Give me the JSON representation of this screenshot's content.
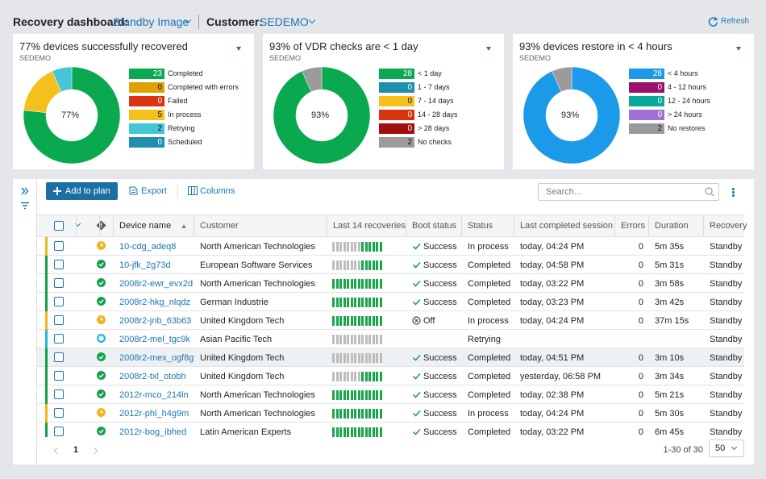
{
  "header": {
    "label": "Recovery dashboard:",
    "view": "Standby Image",
    "customer_label": "Customer:",
    "customer": "SEDEMO",
    "refresh": "Refresh"
  },
  "cards": [
    {
      "title": "77% devices successfully recovered",
      "subtitle": "SEDEMO",
      "center": "77%",
      "items": [
        {
          "label": "Completed",
          "value": 23,
          "color": "#0aa84f"
        },
        {
          "label": "Completed with errors",
          "value": 0,
          "color": "#e0a100"
        },
        {
          "label": "Failed",
          "value": 0,
          "color": "#d9330f"
        },
        {
          "label": "In process",
          "value": 5,
          "color": "#f3c01c"
        },
        {
          "label": "Retrying",
          "value": 2,
          "color": "#45c6d6"
        },
        {
          "label": "Scheduled",
          "value": 0,
          "color": "#1f8fae"
        }
      ]
    },
    {
      "title": "93% of VDR checks are < 1 day",
      "subtitle": "SEDEMO",
      "center": "93%",
      "items": [
        {
          "label": "< 1 day",
          "value": 28,
          "color": "#0aa84f"
        },
        {
          "label": "1 - 7 days",
          "value": 0,
          "color": "#1f8fae"
        },
        {
          "label": "7 - 14 days",
          "value": 0,
          "color": "#f3c01c"
        },
        {
          "label": "14 - 28 days",
          "value": 0,
          "color": "#d9330f"
        },
        {
          "label": "> 28 days",
          "value": 0,
          "color": "#a00e0e"
        },
        {
          "label": "No checks",
          "value": 2,
          "color": "#9b9b9b"
        }
      ]
    },
    {
      "title": "93% devices restore in < 4 hours",
      "subtitle": "SEDEMO",
      "center": "93%",
      "items": [
        {
          "label": "< 4 hours",
          "value": 28,
          "color": "#1a9ae8"
        },
        {
          "label": "4 - 12 hours",
          "value": 0,
          "color": "#9c0f6e"
        },
        {
          "label": "12 - 24 hours",
          "value": 0,
          "color": "#0aa89a"
        },
        {
          "label": "> 24 hours",
          "value": 0,
          "color": "#a070d6"
        },
        {
          "label": "No restores",
          "value": 2,
          "color": "#9b9b9b"
        }
      ]
    }
  ],
  "toolbar": {
    "add": "Add to plan",
    "export": "Export",
    "columns": "Columns",
    "search": "Search..."
  },
  "table": {
    "columns": [
      "Device name",
      "Customer",
      "Last 14 recoveries",
      "Boot status",
      "Status",
      "Last completed session",
      "Errors",
      "Duration",
      "Recovery"
    ],
    "rows": [
      {
        "icon": "clock",
        "device": "10-cdg_adeq8",
        "customer": "North American Technologies",
        "recent": 6,
        "boot": {
          "icon": "check",
          "text": "Success"
        },
        "status": "In process",
        "last": "today, 04:24 PM",
        "errors": 0,
        "duration": "5m 35s",
        "recovery": "Standby Image"
      },
      {
        "icon": "check",
        "device": "10-jfk_2g73d",
        "customer": "European Software Services",
        "recent": 6,
        "boot": {
          "icon": "check",
          "text": "Success"
        },
        "status": "Completed",
        "last": "today, 04:58 PM",
        "errors": 0,
        "duration": "5m 31s",
        "recovery": "Standby Image"
      },
      {
        "icon": "check",
        "device": "2008r2-ewr_evx2d",
        "customer": "North American Technologies",
        "recent": 14,
        "boot": {
          "icon": "check",
          "text": "Success"
        },
        "status": "Completed",
        "last": "today, 03:22 PM",
        "errors": 0,
        "duration": "3m 58s",
        "recovery": "Standby Image"
      },
      {
        "icon": "check",
        "device": "2008r2-hkg_nlqdz",
        "customer": "German Industrie",
        "recent": 14,
        "boot": {
          "icon": "check",
          "text": "Success"
        },
        "status": "Completed",
        "last": "today, 03:23 PM",
        "errors": 0,
        "duration": "3m 42s",
        "recovery": "Standby Image"
      },
      {
        "icon": "clock",
        "device": "2008r2-jnb_63b63",
        "customer": "United Kingdom Tech",
        "recent": 14,
        "boot": {
          "icon": "off",
          "text": "Off"
        },
        "status": "In process",
        "last": "today, 04:24 PM",
        "errors": 0,
        "duration": "37m 15s",
        "recovery": "Standby Image"
      },
      {
        "icon": "gear",
        "device": "2008r2-mel_tgc9k",
        "customer": "Asian Pacific Tech",
        "recent": 0,
        "boot": null,
        "status": "Retrying",
        "last": null,
        "errors": null,
        "duration": null,
        "recovery": "Standby Image"
      },
      {
        "icon": "check",
        "device": "2008r2-mex_ogf8g",
        "customer": "United Kingdom Tech",
        "recent": 0,
        "boot": {
          "icon": "check",
          "text": "Success"
        },
        "status": "Completed",
        "last": "today, 04:51 PM",
        "errors": 0,
        "duration": "3m 10s",
        "recovery": "Standby Image",
        "selected": true
      },
      {
        "icon": "check",
        "device": "2008r2-txl_otobh",
        "customer": "United Kingdom Tech",
        "recent": 6,
        "boot": {
          "icon": "check",
          "text": "Success"
        },
        "status": "Completed",
        "last": "yesterday, 06:58 PM",
        "errors": 0,
        "duration": "3m 34s",
        "recovery": "Standby Image"
      },
      {
        "icon": "check",
        "device": "2012r-mco_214ln",
        "customer": "North American Technologies",
        "recent": 14,
        "boot": {
          "icon": "check",
          "text": "Success"
        },
        "status": "Completed",
        "last": "today, 02:38 PM",
        "errors": 0,
        "duration": "5m 21s",
        "recovery": "Standby Image"
      },
      {
        "icon": "clock",
        "device": "2012r-phl_h4g9m",
        "customer": "North American Technologies",
        "recent": 14,
        "boot": {
          "icon": "check",
          "text": "Success"
        },
        "status": "In process",
        "last": "today, 04:24 PM",
        "errors": 0,
        "duration": "5m 30s",
        "recovery": "Standby Image"
      },
      {
        "icon": "check",
        "device": "2012r-bog_ibhed",
        "customer": "Latin American Experts",
        "recent": 14,
        "boot": {
          "icon": "check",
          "text": "Success"
        },
        "status": "Completed",
        "last": "today, 03:22 PM",
        "errors": 0,
        "duration": "6m 45s",
        "recovery": "Standby Image"
      }
    ]
  },
  "footer": {
    "page": "1",
    "range": "1-30 of 30",
    "per_page": "50"
  }
}
